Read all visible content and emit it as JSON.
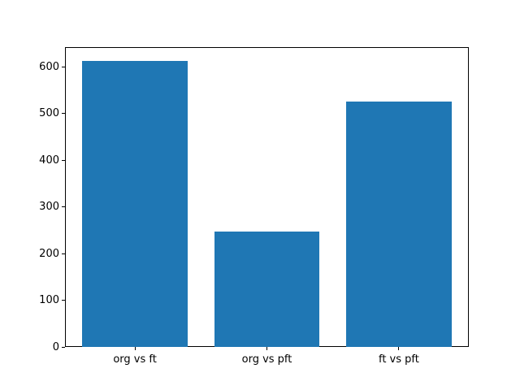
{
  "chart_data": {
    "type": "bar",
    "title": "",
    "xlabel": "",
    "ylabel": "",
    "categories": [
      "org vs ft",
      "org vs pft",
      "ft vs pft"
    ],
    "values": [
      613,
      247,
      526
    ],
    "x_positions": [
      0,
      1,
      2
    ],
    "bar_width": 0.8,
    "bar_color": "#1f77b4",
    "xlim": [
      -0.53,
      2.53
    ],
    "ylim": [
      0,
      642
    ],
    "yticks": [
      0,
      100,
      200,
      300,
      400,
      500,
      600
    ],
    "grid": false,
    "legend": null,
    "background_color": "#ffffff",
    "frame_color": "#000000"
  }
}
